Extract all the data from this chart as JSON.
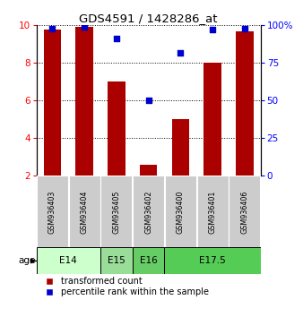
{
  "title": "GDS4591 / 1428286_at",
  "samples": [
    "GSM936403",
    "GSM936404",
    "GSM936405",
    "GSM936402",
    "GSM936400",
    "GSM936401",
    "GSM936406"
  ],
  "bar_values": [
    9.8,
    9.9,
    7.0,
    2.6,
    5.0,
    8.0,
    9.7
  ],
  "percentile_values": [
    98,
    99,
    91,
    50,
    82,
    97,
    98
  ],
  "bar_bottom": 2.0,
  "ylim_left": [
    2,
    10
  ],
  "ylim_right": [
    0,
    100
  ],
  "yticks_left": [
    2,
    4,
    6,
    8,
    10
  ],
  "yticks_right": [
    0,
    25,
    50,
    75,
    100
  ],
  "ytick_labels_right": [
    "0",
    "25",
    "50",
    "75",
    "100%"
  ],
  "bar_color": "#aa0000",
  "dot_color": "#0000cc",
  "age_groups": [
    {
      "label": "E14",
      "start": 0,
      "end": 2,
      "color": "#ccffcc"
    },
    {
      "label": "E15",
      "start": 2,
      "end": 3,
      "color": "#99dd99"
    },
    {
      "label": "E16",
      "start": 3,
      "end": 4,
      "color": "#66cc66"
    },
    {
      "label": "E17.5",
      "start": 4,
      "end": 7,
      "color": "#55cc55"
    }
  ],
  "legend_bar_label": "transformed count",
  "legend_dot_label": "percentile rank within the sample",
  "age_label": "age",
  "background_color": "#ffffff",
  "sample_box_color": "#cccccc"
}
